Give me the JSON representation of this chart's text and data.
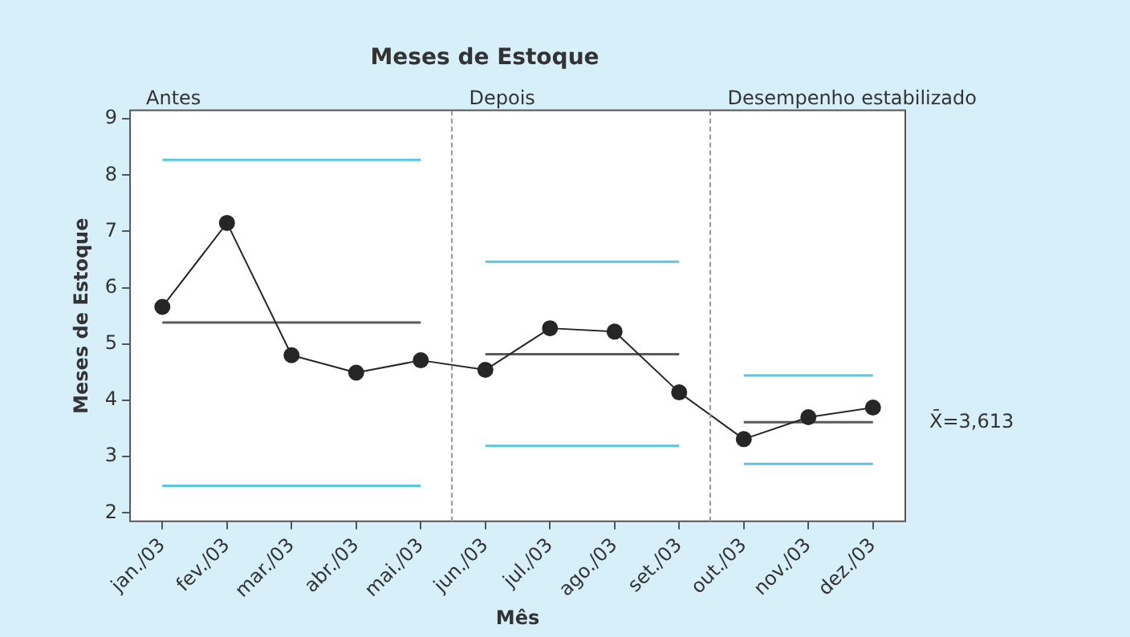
{
  "chart_data": {
    "type": "line",
    "title": "Meses de Estoque",
    "xlabel": "Mês",
    "ylabel": "Meses de Estoque",
    "categories": [
      "jan./03",
      "fev./03",
      "mar./03",
      "abr./03",
      "mai./03",
      "jun./03",
      "jul./03",
      "ago./03",
      "set./03",
      "out./03",
      "nov./03",
      "dez./03"
    ],
    "series": [
      {
        "color": "#262626",
        "marker": "circle",
        "values": [
          5.66,
          7.15,
          4.8,
          4.49,
          4.71,
          4.54,
          5.28,
          5.22,
          4.14,
          3.31,
          3.7,
          3.87
        ]
      },
      {
        "color": "#5bc6e0",
        "marker": "none",
        "values": [
          8.27,
          8.27,
          8.27,
          8.27,
          8.27,
          null,
          null,
          null,
          null,
          null,
          null,
          null
        ]
      },
      {
        "color": "#5a5a5a",
        "marker": "none",
        "values": [
          5.38,
          5.38,
          5.38,
          5.38,
          5.38,
          null,
          null,
          null,
          null,
          null,
          null,
          null
        ]
      },
      {
        "color": "#5bc6e0",
        "marker": "none",
        "values": [
          2.48,
          2.48,
          2.48,
          2.48,
          2.48,
          null,
          null,
          null,
          null,
          null,
          null,
          null
        ]
      },
      {
        "color": "#5bc6e0",
        "marker": "none",
        "values": [
          null,
          null,
          null,
          null,
          null,
          6.46,
          6.46,
          6.46,
          6.46,
          null,
          null,
          null
        ]
      },
      {
        "color": "#5a5a5a",
        "marker": "none",
        "values": [
          null,
          null,
          null,
          null,
          null,
          4.82,
          4.82,
          4.82,
          4.82,
          null,
          null,
          null
        ]
      },
      {
        "color": "#5bc6e0",
        "marker": "none",
        "values": [
          null,
          null,
          null,
          null,
          null,
          3.19,
          3.19,
          3.19,
          3.19,
          null,
          null,
          null
        ]
      },
      {
        "color": "#5bc6e0",
        "marker": "none",
        "values": [
          null,
          null,
          null,
          null,
          null,
          null,
          null,
          null,
          null,
          4.44,
          4.44,
          4.44
        ]
      },
      {
        "color": "#5a5a5a",
        "marker": "none",
        "values": [
          null,
          null,
          null,
          null,
          null,
          null,
          null,
          null,
          null,
          3.61,
          3.61,
          3.61
        ]
      },
      {
        "color": "#5bc6e0",
        "marker": "none",
        "values": [
          null,
          null,
          null,
          null,
          null,
          null,
          null,
          null,
          null,
          2.87,
          2.87,
          2.87
        ]
      }
    ],
    "annotations": [
      "Antes",
      "Depois",
      "Desempenho estabilizado",
      {
        "text": "X̄=3,613",
        "x": "dez./03",
        "y": 3.61
      }
    ],
    "ylim": [
      1.85,
      9.15
    ],
    "yticks": [
      2,
      3,
      4,
      5,
      6,
      7,
      8,
      9
    ],
    "grid": false,
    "legend": false
  }
}
